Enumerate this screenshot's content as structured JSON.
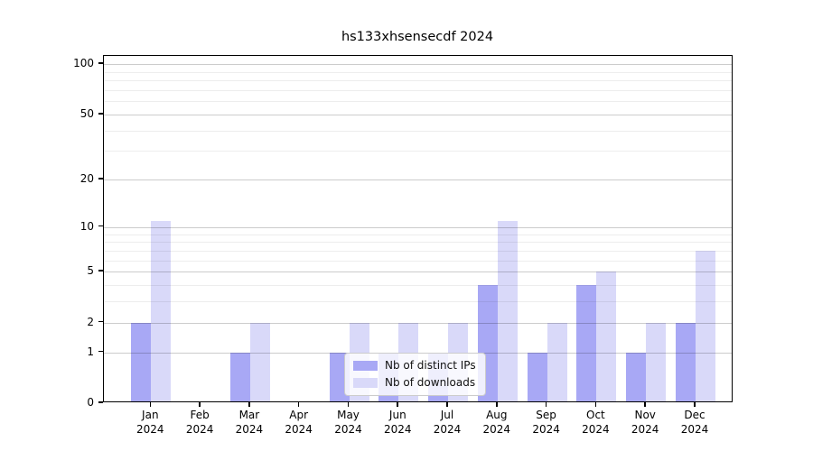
{
  "page": {
    "background": "#ffffff"
  },
  "chart_data": {
    "type": "bar",
    "title": "hs133xhsensecdf 2024",
    "categories": [
      "Jan",
      "Feb",
      "Mar",
      "Apr",
      "May",
      "Jun",
      "Jul",
      "Aug",
      "Sep",
      "Oct",
      "Nov",
      "Dec"
    ],
    "category_year": "2024",
    "series": [
      {
        "name": "Nb of distinct IPs",
        "color": "#a8a8f5",
        "values": [
          2,
          0,
          1,
          0,
          1,
          1,
          1,
          4,
          1,
          4,
          1,
          2
        ]
      },
      {
        "name": "Nb of downloads",
        "color": "#d9d9f9",
        "values": [
          11,
          0,
          2,
          0,
          2,
          2,
          2,
          11,
          2,
          5,
          2,
          7
        ]
      }
    ],
    "yscale": "log1p",
    "ylim": [
      0,
      112
    ],
    "yticks_major": [
      0,
      1,
      2,
      5,
      10,
      20,
      50,
      100
    ],
    "yticks_minor": [
      3,
      4,
      6,
      7,
      8,
      9,
      30,
      40,
      60,
      70,
      80,
      90
    ],
    "grid": "both",
    "grid_over_bars": true,
    "legend_position": "lower-center",
    "xlabel": "",
    "ylabel": ""
  }
}
